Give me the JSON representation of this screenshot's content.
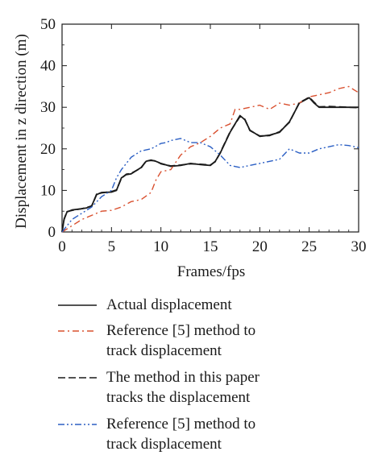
{
  "chart_data": {
    "type": "line",
    "xlabel": "Frames/fps",
    "ylabel": "Displacement in z direction (m)",
    "xlim": [
      0,
      30
    ],
    "ylim": [
      0,
      50
    ],
    "xticks": [
      "0",
      "5",
      "10",
      "15",
      "20",
      "25",
      "30"
    ],
    "yticks": [
      "0",
      "10",
      "20",
      "30",
      "40",
      "50"
    ],
    "grid": false,
    "legend_position": "below",
    "series": [
      {
        "name": "Actual displacement",
        "color": "#1a1a1a",
        "style": "solid",
        "x": [
          0,
          0.2,
          0.5,
          1,
          2,
          2.5,
          3,
          3.5,
          4,
          5,
          5.5,
          6,
          6.5,
          7,
          8,
          8.5,
          9,
          9.5,
          10,
          11,
          12,
          13,
          14,
          15,
          15.5,
          16,
          17,
          18,
          18.5,
          19,
          20,
          21,
          22,
          23,
          24,
          25,
          25.5,
          26,
          27,
          28,
          29,
          30
        ],
        "y": [
          0,
          3,
          4.8,
          5.3,
          5.6,
          5.8,
          6.3,
          9,
          9.5,
          9.6,
          10,
          13,
          13.8,
          14,
          15.5,
          17,
          17.3,
          17,
          16.5,
          15.8,
          16,
          16.5,
          16.2,
          16,
          17,
          19,
          24,
          28,
          27,
          24.5,
          23,
          23.3,
          24,
          26.5,
          31,
          32.3,
          31,
          30,
          30,
          30,
          30,
          30
        ]
      },
      {
        "name": "Reference [5] method to\ntrack displacement",
        "color": "#d9502f",
        "style": "dashdot",
        "x": [
          0,
          1,
          2,
          3,
          4,
          5,
          6,
          7,
          8,
          9,
          9.5,
          10,
          11,
          12,
          13,
          14,
          15,
          16,
          17,
          17.5,
          18,
          19,
          20,
          21,
          22,
          23,
          24,
          25,
          26,
          27,
          28,
          29,
          30
        ],
        "y": [
          0,
          1.5,
          3,
          4,
          5,
          5.2,
          6,
          7.3,
          7.8,
          9.5,
          12.5,
          14.5,
          15,
          18.5,
          20.5,
          21.5,
          23,
          25,
          26,
          29.5,
          29.5,
          30,
          30.5,
          29.5,
          31,
          30.5,
          31,
          32.5,
          33,
          33.5,
          34.5,
          35,
          33.5
        ]
      },
      {
        "name": "The method in this paper\ntracks the displacement",
        "color": "#1a1a1a",
        "style": "dashed",
        "x": [
          0,
          0.2,
          0.5,
          1,
          2,
          2.5,
          3,
          3.5,
          4,
          5,
          5.5,
          6,
          6.5,
          7,
          8,
          8.5,
          9,
          9.5,
          10,
          11,
          12,
          13,
          14,
          15,
          15.5,
          16,
          17,
          18,
          18.5,
          19,
          20,
          21,
          22,
          23,
          24,
          25,
          25.5,
          26,
          27,
          28,
          29,
          30
        ],
        "y": [
          0,
          3.1,
          4.9,
          5.2,
          5.6,
          5.9,
          6.2,
          9.1,
          9.4,
          9.7,
          10.1,
          12.9,
          13.9,
          14.1,
          15.4,
          17.1,
          17.2,
          17.1,
          16.4,
          15.9,
          16.1,
          16.4,
          16.3,
          16.1,
          16.9,
          19.1,
          24.1,
          27.8,
          27.1,
          24.4,
          23.1,
          23.2,
          24.1,
          26.4,
          31.1,
          32.4,
          31.2,
          30.1,
          30.2,
          30.1,
          30,
          29.9
        ]
      },
      {
        "name": "Reference [5] method to\ntrack displacement",
        "color": "#2b5fc4",
        "style": "dashdotdot",
        "x": [
          0,
          1,
          2,
          3,
          4,
          5,
          5.5,
          6,
          7,
          8,
          9,
          10,
          10.5,
          11,
          12,
          13,
          14,
          15,
          16,
          17,
          18,
          19,
          20,
          21,
          22,
          23,
          24,
          25,
          26,
          27,
          28,
          29,
          30
        ],
        "y": [
          0,
          3,
          4.5,
          6,
          8.5,
          10,
          13,
          15,
          18,
          19.5,
          20,
          21.3,
          21.5,
          22,
          22.5,
          21.5,
          21.5,
          20.5,
          18.5,
          16,
          15.5,
          16,
          16.5,
          17,
          17.5,
          20,
          19,
          19,
          20,
          20.5,
          21,
          20.8,
          20.3
        ]
      }
    ]
  }
}
